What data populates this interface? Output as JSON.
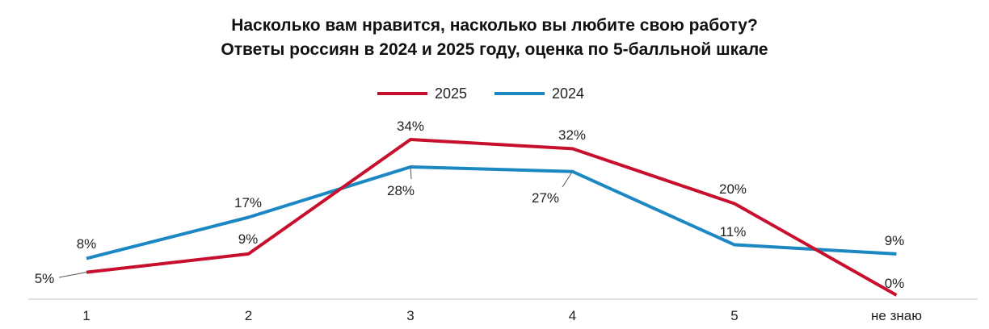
{
  "chart_data": {
    "type": "line",
    "title_lines": [
      "Насколько вам нравится, насколько вы любите свою работу?",
      "Ответы россиян в 2024 и 2025 году, оценка по 5-балльной шкале"
    ],
    "categories": [
      "1",
      "2",
      "3",
      "4",
      "5",
      "не знаю"
    ],
    "series": [
      {
        "name": "2025",
        "color": "#c8102e",
        "values": [
          5,
          9,
          34,
          32,
          20,
          0
        ],
        "labels": [
          "5%",
          "9%",
          "34%",
          "32%",
          "20%",
          "0%"
        ]
      },
      {
        "name": "2024",
        "color": "#1b87c3",
        "values": [
          8,
          17,
          28,
          27,
          11,
          9
        ],
        "labels": [
          "8%",
          "17%",
          "28%",
          "27%",
          "11%",
          "9%"
        ]
      }
    ],
    "ylim": [
      0,
      36
    ],
    "grid": false,
    "legend_position": "top-center",
    "axis_color": "#d9d9d9"
  }
}
